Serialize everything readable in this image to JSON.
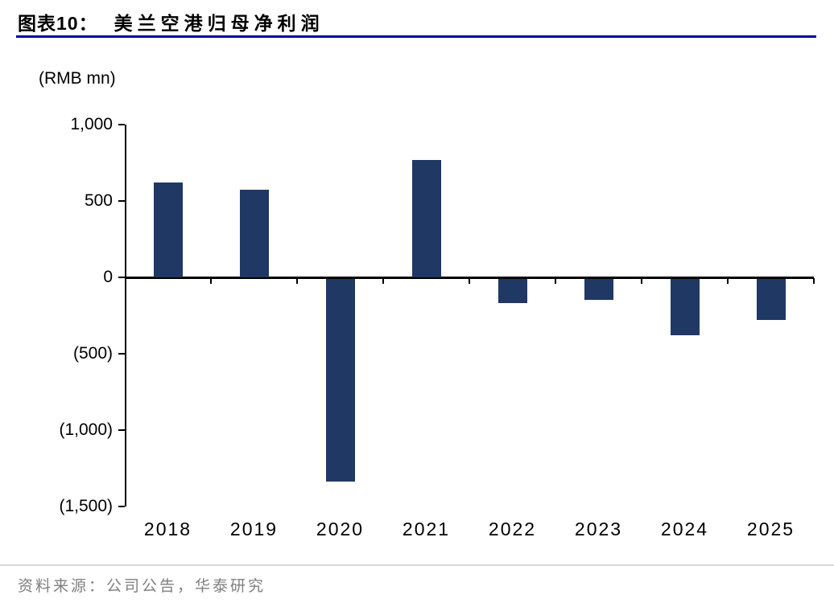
{
  "header": {
    "label": "图表10：",
    "title": "美兰空港归母净利润"
  },
  "footer": {
    "source": "资料来源：公司公告，华泰研究"
  },
  "chart_data": {
    "type": "bar",
    "title": "美兰空港归母净利润",
    "unit": "(RMB mn)",
    "categories": [
      "2018",
      "2019",
      "2020",
      "2021",
      "2022",
      "2023",
      "2024",
      "2025"
    ],
    "values": [
      620,
      575,
      -1330,
      770,
      -160,
      -140,
      -370,
      -270
    ],
    "ylim": [
      -1500,
      1000
    ],
    "yticks": [
      1000,
      500,
      0,
      -500,
      -1000,
      -1500
    ],
    "ytick_labels": [
      "1,000",
      "500",
      "0",
      "(500)",
      "(1,000)",
      "(1,500)"
    ],
    "xlabel": "",
    "ylabel": "(RMB mn)",
    "grid": false,
    "legend": "none",
    "bar_color": "#1F3864",
    "accent_color": "#0000A0",
    "axis_color": "#000000",
    "source_rule_color": "#D9D9D9"
  }
}
